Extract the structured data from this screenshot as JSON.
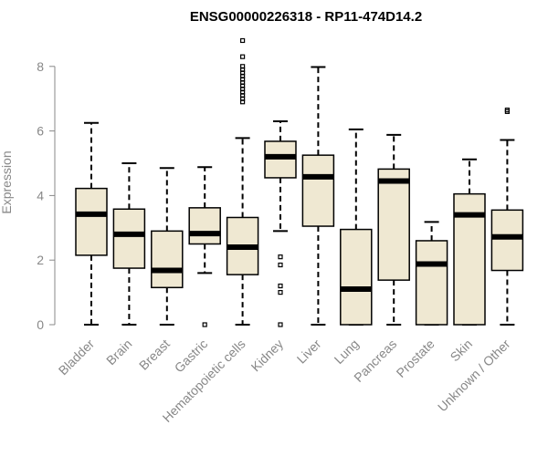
{
  "chart_data": {
    "type": "boxplot",
    "title": "ENSG00000226318 - RP11-474D14.2",
    "ylabel": "Expression",
    "xlabel": "",
    "ylim": [
      0,
      9
    ],
    "yticks": [
      0,
      2,
      4,
      6,
      8
    ],
    "box_color": "#efe8d2",
    "categories": [
      "Bladder",
      "Brain",
      "Breast",
      "Gastric",
      "Hematopoietic cells",
      "Kidney",
      "Liver",
      "Lung",
      "Pancreas",
      "Prostate",
      "Skin",
      "Unknown / Other"
    ],
    "boxes": [
      {
        "q1": 2.15,
        "median": 3.42,
        "q3": 4.22,
        "whislo": 0.0,
        "whishi": 6.25,
        "outliers": []
      },
      {
        "q1": 1.75,
        "median": 2.8,
        "q3": 3.58,
        "whislo": 0.0,
        "whishi": 5.0,
        "outliers": []
      },
      {
        "q1": 1.15,
        "median": 1.68,
        "q3": 2.9,
        "whislo": 0.0,
        "whishi": 4.85,
        "outliers": []
      },
      {
        "q1": 2.5,
        "median": 2.82,
        "q3": 3.62,
        "whislo": 1.6,
        "whishi": 4.88,
        "outliers": [
          0.0
        ]
      },
      {
        "q1": 1.55,
        "median": 2.4,
        "q3": 3.32,
        "whislo": 0.0,
        "whishi": 5.78,
        "outliers": [
          6.9,
          7.0,
          7.1,
          7.2,
          7.3,
          7.4,
          7.5,
          7.6,
          7.7,
          7.8,
          7.9,
          8.0,
          8.3,
          8.8
        ]
      },
      {
        "q1": 4.55,
        "median": 5.2,
        "q3": 5.68,
        "whislo": 2.9,
        "whishi": 6.3,
        "outliers": [
          0.0,
          1.0,
          1.2,
          1.85,
          2.1
        ]
      },
      {
        "q1": 3.05,
        "median": 4.58,
        "q3": 5.25,
        "whislo": 0.0,
        "whishi": 7.98,
        "outliers": []
      },
      {
        "q1": 0.0,
        "median": 1.1,
        "q3": 2.95,
        "whislo": 0.0,
        "whishi": 6.05,
        "outliers": []
      },
      {
        "q1": 1.38,
        "median": 4.45,
        "q3": 4.82,
        "whislo": 0.0,
        "whishi": 5.88,
        "outliers": []
      },
      {
        "q1": 0.0,
        "median": 1.88,
        "q3": 2.6,
        "whislo": 0.0,
        "whishi": 3.18,
        "outliers": []
      },
      {
        "q1": 0.0,
        "median": 3.4,
        "q3": 4.05,
        "whislo": 0.0,
        "whishi": 5.12,
        "outliers": []
      },
      {
        "q1": 1.68,
        "median": 2.72,
        "q3": 3.55,
        "whislo": 0.0,
        "whishi": 5.72,
        "outliers": [
          6.6,
          6.65
        ]
      }
    ],
    "grid": false,
    "legend": "none"
  }
}
